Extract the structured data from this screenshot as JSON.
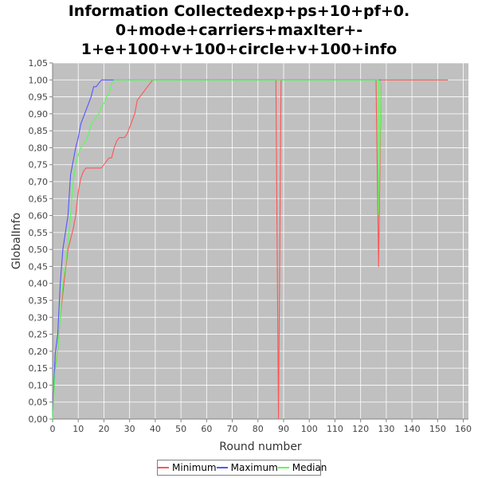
{
  "chart_data": {
    "type": "line",
    "title_lines": [
      "Information Collectedexp+ps+10+pf+0.",
      "0+mode+carriers+maxIter+-",
      "1+e+100+v+100+circle+v+100+info"
    ],
    "xlabel": "Round number",
    "ylabel": "GlobalInfo",
    "xlim": [
      0,
      162
    ],
    "ylim": [
      0,
      1.05
    ],
    "x_ticks": [
      0,
      10,
      20,
      30,
      40,
      50,
      60,
      70,
      80,
      90,
      100,
      110,
      120,
      130,
      140,
      150,
      160
    ],
    "y_ticks": [
      "0,00",
      "0,05",
      "0,10",
      "0,15",
      "0,20",
      "0,25",
      "0,30",
      "0,35",
      "0,40",
      "0,45",
      "0,50",
      "0,55",
      "0,60",
      "0,65",
      "0,70",
      "0,75",
      "0,80",
      "0,85",
      "0,90",
      "0,95",
      "1,00",
      "1,05"
    ],
    "grid": true,
    "legend_position": "bottom",
    "series": [
      {
        "name": "Minimum",
        "color": "#ff5555",
        "points": [
          [
            0,
            0
          ],
          [
            1,
            0.15
          ],
          [
            2,
            0.2
          ],
          [
            3,
            0.3
          ],
          [
            4,
            0.37
          ],
          [
            5,
            0.44
          ],
          [
            6,
            0.5
          ],
          [
            7,
            0.53
          ],
          [
            8,
            0.56
          ],
          [
            9,
            0.6
          ],
          [
            10,
            0.67
          ],
          [
            11,
            0.71
          ],
          [
            12,
            0.73
          ],
          [
            13,
            0.74
          ],
          [
            14,
            0.74
          ],
          [
            15,
            0.74
          ],
          [
            16,
            0.74
          ],
          [
            17,
            0.74
          ],
          [
            18,
            0.74
          ],
          [
            19,
            0.74
          ],
          [
            20,
            0.75
          ],
          [
            21,
            0.76
          ],
          [
            22,
            0.77
          ],
          [
            23,
            0.77
          ],
          [
            24,
            0.8
          ],
          [
            25,
            0.82
          ],
          [
            26,
            0.83
          ],
          [
            27,
            0.83
          ],
          [
            28,
            0.83
          ],
          [
            29,
            0.84
          ],
          [
            30,
            0.86
          ],
          [
            31,
            0.88
          ],
          [
            32,
            0.9
          ],
          [
            33,
            0.94
          ],
          [
            34,
            0.95
          ],
          [
            35,
            0.96
          ],
          [
            36,
            0.97
          ],
          [
            37,
            0.98
          ],
          [
            38,
            0.99
          ],
          [
            39,
            1.0
          ],
          [
            40,
            1.0
          ],
          [
            87,
            1.0
          ],
          [
            88,
            0
          ],
          [
            89,
            1.0
          ],
          [
            126,
            1.0
          ],
          [
            127,
            0.45
          ],
          [
            128,
            1.0
          ],
          [
            154,
            1.0
          ]
        ]
      },
      {
        "name": "Maximum",
        "color": "#5555ff",
        "points": [
          [
            0,
            0
          ],
          [
            1,
            0.19
          ],
          [
            2,
            0.25
          ],
          [
            3,
            0.4
          ],
          [
            4,
            0.5
          ],
          [
            5,
            0.55
          ],
          [
            6,
            0.6
          ],
          [
            7,
            0.72
          ],
          [
            8,
            0.76
          ],
          [
            9,
            0.8
          ],
          [
            10,
            0.83
          ],
          [
            11,
            0.87
          ],
          [
            12,
            0.89
          ],
          [
            13,
            0.91
          ],
          [
            14,
            0.93
          ],
          [
            15,
            0.95
          ],
          [
            16,
            0.98
          ],
          [
            17,
            0.98
          ],
          [
            18,
            0.99
          ],
          [
            19,
            1.0
          ],
          [
            20,
            1.0
          ],
          [
            39,
            1.0
          ],
          [
            87,
            1.0
          ],
          [
            88,
            1.0
          ],
          [
            89,
            1.0
          ],
          [
            126,
            1.0
          ],
          [
            127,
            1.0
          ],
          [
            128,
            1.0
          ]
        ]
      },
      {
        "name": "Median",
        "color": "#55ff55",
        "points": [
          [
            0,
            0
          ],
          [
            1,
            0.14
          ],
          [
            2,
            0.2
          ],
          [
            3,
            0.3
          ],
          [
            4,
            0.4
          ],
          [
            5,
            0.45
          ],
          [
            6,
            0.52
          ],
          [
            7,
            0.6
          ],
          [
            8,
            0.7
          ],
          [
            9,
            0.75
          ],
          [
            10,
            0.78
          ],
          [
            11,
            0.8
          ],
          [
            12,
            0.81
          ],
          [
            13,
            0.82
          ],
          [
            14,
            0.84
          ],
          [
            15,
            0.87
          ],
          [
            16,
            0.88
          ],
          [
            17,
            0.89
          ],
          [
            18,
            0.9
          ],
          [
            19,
            0.92
          ],
          [
            20,
            0.93
          ],
          [
            21,
            0.95
          ],
          [
            22,
            0.96
          ],
          [
            23,
            0.99
          ],
          [
            24,
            1.0
          ],
          [
            88,
            1.0
          ],
          [
            127,
            1.0
          ],
          [
            127,
            0.6
          ],
          [
            128,
            1.0
          ]
        ]
      }
    ]
  }
}
